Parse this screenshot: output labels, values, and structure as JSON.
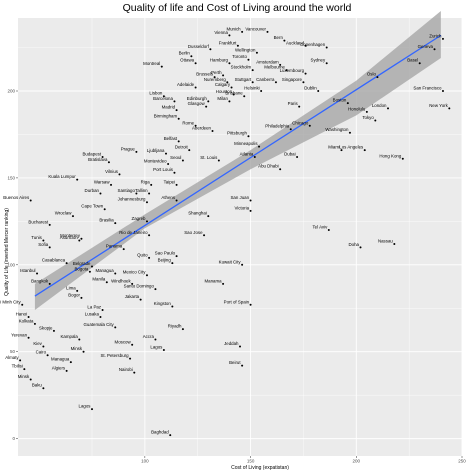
{
  "chart_data": {
    "type": "scatter",
    "title": "Quality of life and Cost of Living around the world",
    "xlabel": "Cost of Living (expatistan)",
    "ylabel": "Quality of Life (inverted Mercer ranking)",
    "xlim": [
      40,
      250
    ],
    "ylim": [
      -10,
      242
    ],
    "xticks": [
      100,
      150,
      200,
      250
    ],
    "yticks": [
      0,
      50,
      100,
      150,
      200
    ],
    "grid": true,
    "background": "#ebebeb",
    "gridColor": "#ffffff",
    "pointColor": "#000000",
    "trendColor": "#3366ff",
    "bandColor": "#a6a6a6",
    "trend": {
      "x": [
        48,
        240
      ],
      "y": [
        82,
        232
      ]
    },
    "band": {
      "x": [
        48,
        100,
        150,
        200,
        240
      ],
      "lower": [
        74,
        121,
        155,
        186,
        219
      ],
      "upper": [
        89,
        129,
        166,
        206,
        246
      ]
    },
    "points": [
      {
        "label": "Zurich",
        "x": 241,
        "y": 230
      },
      {
        "label": "Geneva",
        "x": 237,
        "y": 224
      },
      {
        "label": "Basel",
        "x": 230,
        "y": 216
      },
      {
        "label": "San Francisco",
        "x": 241,
        "y": 200
      },
      {
        "label": "New York",
        "x": 244,
        "y": 190
      },
      {
        "label": "London",
        "x": 215,
        "y": 190
      },
      {
        "label": "Boston",
        "x": 196,
        "y": 193
      },
      {
        "label": "Honolulu",
        "x": 205,
        "y": 188
      },
      {
        "label": "Oslo",
        "x": 210,
        "y": 208
      },
      {
        "label": "Tokyo",
        "x": 209,
        "y": 183
      },
      {
        "label": "Washington",
        "x": 197,
        "y": 176
      },
      {
        "label": "Hong Kong",
        "x": 222,
        "y": 161
      },
      {
        "label": "Los Angeles",
        "x": 204,
        "y": 166
      },
      {
        "label": "Miami",
        "x": 193,
        "y": 166
      },
      {
        "label": "Chicago",
        "x": 178,
        "y": 180
      },
      {
        "label": "Dubai",
        "x": 172,
        "y": 162
      },
      {
        "label": "Abu Dhabi",
        "x": 164,
        "y": 155
      },
      {
        "label": "Paris",
        "x": 173,
        "y": 191
      },
      {
        "label": "Dublin",
        "x": 182,
        "y": 200
      },
      {
        "label": "Copenhagen",
        "x": 186,
        "y": 225
      },
      {
        "label": "Sydney",
        "x": 186,
        "y": 216
      },
      {
        "label": "Auckland",
        "x": 176,
        "y": 226
      },
      {
        "label": "Vancouver",
        "x": 158,
        "y": 234
      },
      {
        "label": "Munich",
        "x": 146,
        "y": 234
      },
      {
        "label": "Vienna",
        "x": 140,
        "y": 232
      },
      {
        "label": "Frankfurt",
        "x": 144,
        "y": 226
      },
      {
        "label": "Dusseldorf",
        "x": 131,
        "y": 224
      },
      {
        "label": "Wellington",
        "x": 153,
        "y": 222
      },
      {
        "label": "Bern",
        "x": 166,
        "y": 229
      },
      {
        "label": "Berlin",
        "x": 122,
        "y": 220
      },
      {
        "label": "Toronto",
        "x": 149,
        "y": 218
      },
      {
        "label": "Amsterdam",
        "x": 164,
        "y": 215
      },
      {
        "label": "Ottawa",
        "x": 124,
        "y": 216
      },
      {
        "label": "Hamburg",
        "x": 140,
        "y": 216
      },
      {
        "label": "Melbourne",
        "x": 167,
        "y": 212
      },
      {
        "label": "Montreal",
        "x": 108,
        "y": 214
      },
      {
        "label": "Luxembourg",
        "x": 176,
        "y": 210
      },
      {
        "label": "Stockholm",
        "x": 151,
        "y": 212
      },
      {
        "label": "Brussels",
        "x": 133,
        "y": 208
      },
      {
        "label": "Perth",
        "x": 137,
        "y": 209
      },
      {
        "label": "Singapore",
        "x": 175,
        "y": 205
      },
      {
        "label": "Canberra",
        "x": 162,
        "y": 205
      },
      {
        "label": "Stuttgart",
        "x": 151,
        "y": 205
      },
      {
        "label": "Helsinki",
        "x": 155,
        "y": 200
      },
      {
        "label": "Nuremberg",
        "x": 139,
        "y": 205
      },
      {
        "label": "Adelaide",
        "x": 124,
        "y": 202
      },
      {
        "label": "Calgary",
        "x": 141,
        "y": 202
      },
      {
        "label": "Houston",
        "x": 142,
        "y": 198
      },
      {
        "label": "Lisbon",
        "x": 109,
        "y": 197
      },
      {
        "label": "Brisbane",
        "x": 147,
        "y": 197
      },
      {
        "label": "Barcelona",
        "x": 114,
        "y": 194
      },
      {
        "label": "Edinburgh",
        "x": 130,
        "y": 194
      },
      {
        "label": "Milan",
        "x": 140,
        "y": 194
      },
      {
        "label": "Glasgow",
        "x": 129,
        "y": 191
      },
      {
        "label": "Madrid",
        "x": 115,
        "y": 189
      },
      {
        "label": "Birmingham",
        "x": 116,
        "y": 184
      },
      {
        "label": "Philadelphia",
        "x": 169,
        "y": 178
      },
      {
        "label": "Rome",
        "x": 124,
        "y": 180
      },
      {
        "label": "Aberdeen",
        "x": 132,
        "y": 177
      },
      {
        "label": "Pittsburgh",
        "x": 149,
        "y": 174
      },
      {
        "label": "Belfast",
        "x": 116,
        "y": 171
      },
      {
        "label": "Minneapolis",
        "x": 154,
        "y": 168
      },
      {
        "label": "Atlanta",
        "x": 152,
        "y": 162
      },
      {
        "label": "Detroit",
        "x": 121,
        "y": 166
      },
      {
        "label": "Seoul",
        "x": 118,
        "y": 160
      },
      {
        "label": "St. Louis",
        "x": 135,
        "y": 160
      },
      {
        "label": "Budapest",
        "x": 80,
        "y": 162
      },
      {
        "label": "Prague",
        "x": 96,
        "y": 165
      },
      {
        "label": "Ljubljana",
        "x": 110,
        "y": 164
      },
      {
        "label": "Bratislava",
        "x": 83,
        "y": 159
      },
      {
        "label": "Montevideo",
        "x": 111,
        "y": 158
      },
      {
        "label": "Port Louis",
        "x": 114,
        "y": 153
      },
      {
        "label": "Vilnius",
        "x": 88,
        "y": 152
      },
      {
        "label": "Kuala Lumpur",
        "x": 68,
        "y": 149
      },
      {
        "label": "Warsaw",
        "x": 84,
        "y": 146
      },
      {
        "label": "Riga",
        "x": 103,
        "y": 146
      },
      {
        "label": "Tallinn",
        "x": 102,
        "y": 141
      },
      {
        "label": "Taipei",
        "x": 115,
        "y": 146
      },
      {
        "label": "Durban",
        "x": 79,
        "y": 141
      },
      {
        "label": "Santiago",
        "x": 96,
        "y": 141
      },
      {
        "label": "Athens",
        "x": 115,
        "y": 137
      },
      {
        "label": "Johannesburg",
        "x": 101,
        "y": 136
      },
      {
        "label": "Buenos Aires",
        "x": 46,
        "y": 137
      },
      {
        "label": "Cape Town",
        "x": 81,
        "y": 132
      },
      {
        "label": "Wroclaw",
        "x": 66,
        "y": 128
      },
      {
        "label": "Zagreb",
        "x": 101,
        "y": 125
      },
      {
        "label": "Shanghai",
        "x": 130,
        "y": 128
      },
      {
        "label": "San Juan",
        "x": 150,
        "y": 137
      },
      {
        "label": "Victoria",
        "x": 150,
        "y": 131
      },
      {
        "label": "Brasilia",
        "x": 86,
        "y": 124
      },
      {
        "label": "Bucharest",
        "x": 55,
        "y": 123
      },
      {
        "label": "Tel Aviv",
        "x": 187,
        "y": 120
      },
      {
        "label": "Monterrey",
        "x": 70,
        "y": 115
      },
      {
        "label": "Tunis",
        "x": 52,
        "y": 114
      },
      {
        "label": "Asuncion",
        "x": 69,
        "y": 114
      },
      {
        "label": "Rio de Janeiro",
        "x": 102,
        "y": 117
      },
      {
        "label": "Sao Jose",
        "x": 128,
        "y": 117
      },
      {
        "label": "Nassau",
        "x": 218,
        "y": 112
      },
      {
        "label": "Doha",
        "x": 202,
        "y": 110
      },
      {
        "label": "Sofia",
        "x": 55,
        "y": 110
      },
      {
        "label": "Panama",
        "x": 90,
        "y": 109
      },
      {
        "label": "Casablanca",
        "x": 63,
        "y": 101
      },
      {
        "label": "Quito",
        "x": 102,
        "y": 104
      },
      {
        "label": "Beijing",
        "x": 113,
        "y": 101
      },
      {
        "label": "Sao Paulo",
        "x": 115,
        "y": 105
      },
      {
        "label": "Kuwait City",
        "x": 146,
        "y": 100
      },
      {
        "label": "Belgrade",
        "x": 75,
        "y": 99
      },
      {
        "label": "Bogota",
        "x": 74,
        "y": 96
      },
      {
        "label": "Managua",
        "x": 86,
        "y": 95
      },
      {
        "label": "Mexico City",
        "x": 101,
        "y": 94
      },
      {
        "label": "Istanbul",
        "x": 49,
        "y": 95
      },
      {
        "label": "Bangkok",
        "x": 55,
        "y": 89
      },
      {
        "label": "Manila",
        "x": 82,
        "y": 90
      },
      {
        "label": "Windhoek",
        "x": 94,
        "y": 89
      },
      {
        "label": "Manama",
        "x": 137,
        "y": 89
      },
      {
        "label": "Santo Domingo",
        "x": 105,
        "y": 86
      },
      {
        "label": "Lima",
        "x": 68,
        "y": 85
      },
      {
        "label": "Jakarta",
        "x": 98,
        "y": 80
      },
      {
        "label": "Bogor",
        "x": 70,
        "y": 81
      },
      {
        "label": "Ho Chi Minh City",
        "x": 42,
        "y": 77
      },
      {
        "label": "La Paz",
        "x": 80,
        "y": 74
      },
      {
        "label": "Kingston",
        "x": 113,
        "y": 76
      },
      {
        "label": "Port of Spain",
        "x": 150,
        "y": 77
      },
      {
        "label": "Lusaka",
        "x": 79,
        "y": 70
      },
      {
        "label": "Hanoi",
        "x": 45,
        "y": 70
      },
      {
        "label": "Kolkata",
        "x": 48,
        "y": 66
      },
      {
        "label": "Skopje",
        "x": 57,
        "y": 62
      },
      {
        "label": "Guatemala City",
        "x": 86,
        "y": 64
      },
      {
        "label": "Riyadh",
        "x": 118,
        "y": 63
      },
      {
        "label": "Yerevan",
        "x": 45,
        "y": 58
      },
      {
        "label": "Kampala",
        "x": 69,
        "y": 57
      },
      {
        "label": "Accra",
        "x": 105,
        "y": 57
      },
      {
        "label": "Moscow",
        "x": 94,
        "y": 54
      },
      {
        "label": "Kiev",
        "x": 52,
        "y": 53
      },
      {
        "label": "Jeddah",
        "x": 145,
        "y": 53
      },
      {
        "label": "Cairo",
        "x": 54,
        "y": 48
      },
      {
        "label": "Minsk",
        "x": 71,
        "y": 50
      },
      {
        "label": "Lagos",
        "x": 109,
        "y": 51
      },
      {
        "label": "Almaty",
        "x": 41,
        "y": 45
      },
      {
        "label": "Managua",
        "x": 65,
        "y": 44
      },
      {
        "label": "St. Petersburg",
        "x": 93,
        "y": 46
      },
      {
        "label": "Tbilisi",
        "x": 43,
        "y": 40
      },
      {
        "label": "Algiers",
        "x": 63,
        "y": 39
      },
      {
        "label": "Nairobi",
        "x": 95,
        "y": 38
      },
      {
        "label": "Beirut",
        "x": 146,
        "y": 42
      },
      {
        "label": "Minsk",
        "x": 46,
        "y": 34
      },
      {
        "label": "Baku",
        "x": 52,
        "y": 29
      },
      {
        "label": "Lagos",
        "x": 75,
        "y": 17
      },
      {
        "label": "Baghdad",
        "x": 112,
        "y": 2
      }
    ]
  }
}
